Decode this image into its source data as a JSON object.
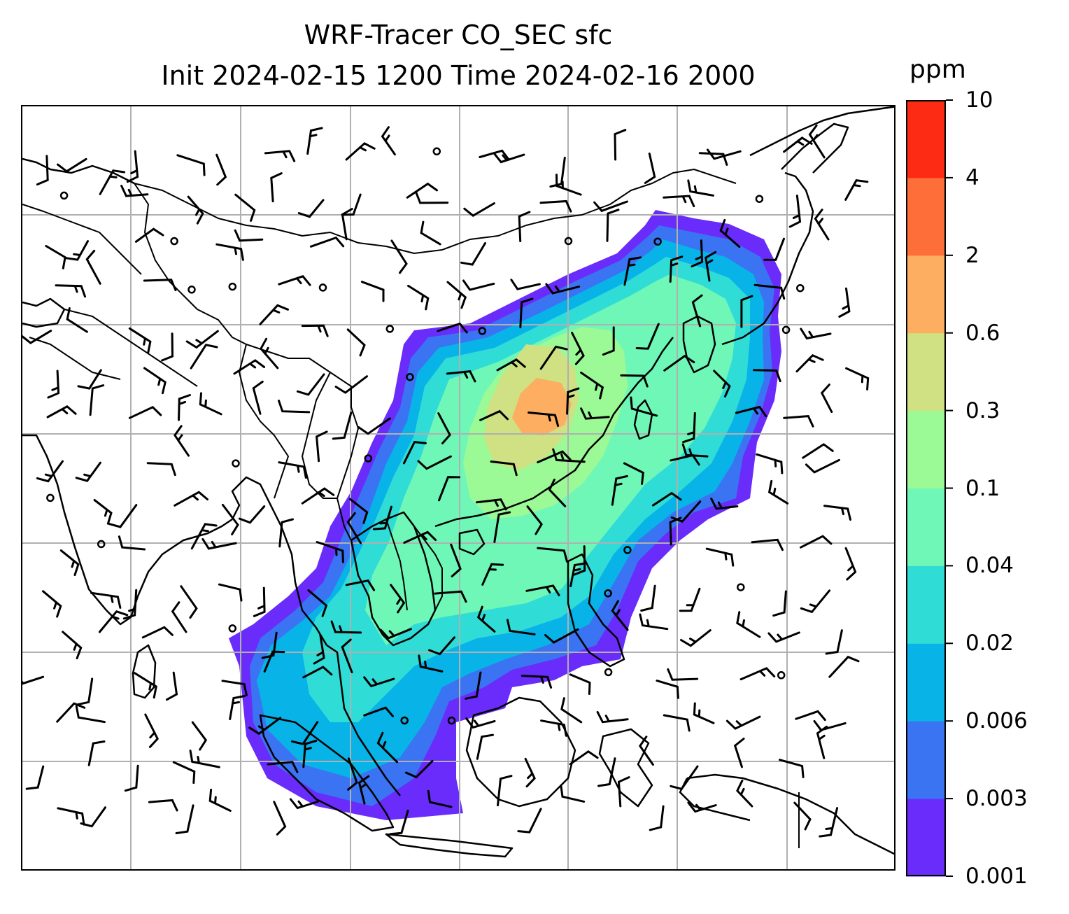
{
  "title": {
    "line1": "WRF-Tracer CO_SEC sfc",
    "line2": "Init 2024-02-15 1200 Time 2024-02-16 2000"
  },
  "colorbar": {
    "unit": "ppm",
    "levels": [
      "0.001",
      "0.003",
      "0.006",
      "0.02",
      "0.04",
      "0.1",
      "0.3",
      "0.6",
      "2",
      "4",
      "10"
    ],
    "colors": [
      "#6a2cfa",
      "#3a74f2",
      "#08b3e8",
      "#30dcd6",
      "#6ff7b8",
      "#9bfa96",
      "#cfe182",
      "#fdae61",
      "#fd6e38",
      "#fd2a14"
    ]
  },
  "map": {
    "field": "CO_SEC",
    "level": "sfc",
    "gridlines": true,
    "overlays": [
      "coastlines",
      "country-borders",
      "wind-barbs"
    ]
  }
}
